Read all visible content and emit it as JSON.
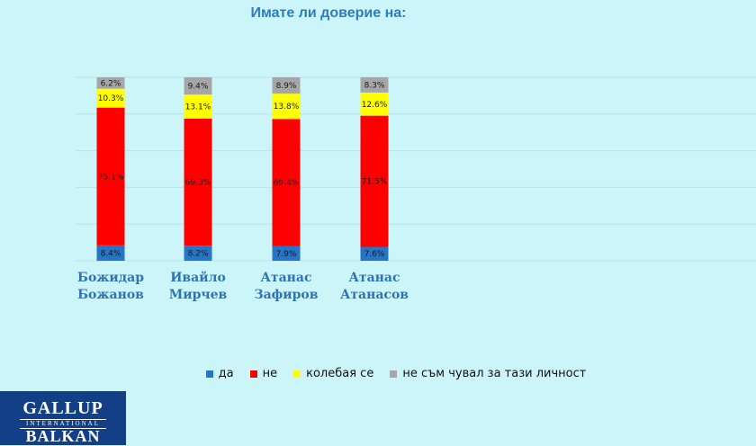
{
  "chart_data": {
    "type": "bar",
    "stacked": true,
    "title": "Имате  ли доверие на:",
    "categories": [
      "Божидар Божанов",
      "Ивайло Мирчев",
      "Атанас Зафиров",
      "Атанас Атанасов"
    ],
    "category_lines": [
      [
        "Божидар",
        "Божанов"
      ],
      [
        "Ивайло",
        "Мирчев"
      ],
      [
        "Атанас",
        "Зафиров"
      ],
      [
        "Атанас",
        "Атанасов"
      ]
    ],
    "series": [
      {
        "name": "да",
        "color": "#2476c9",
        "values": [
          8.4,
          8.2,
          7.9,
          7.6
        ],
        "labels": [
          "8.4%",
          "8.2%",
          "7.9%",
          "7.6%"
        ]
      },
      {
        "name": "не",
        "color": "#ff0000",
        "values": [
          75.1,
          69.3,
          69.4,
          71.5
        ],
        "labels": [
          "75.1%",
          "69.3%",
          "69.4%",
          "71.5%"
        ]
      },
      {
        "name": "колебая се",
        "color": "#ffff00",
        "values": [
          10.3,
          13.1,
          13.8,
          12.6
        ],
        "labels": [
          "10.3%",
          "13.1%",
          "13.8%",
          "12.6%"
        ]
      },
      {
        "name": "не съм чувал за тази личност",
        "color": "#a6a6a6",
        "values": [
          6.2,
          9.4,
          8.9,
          8.3
        ],
        "labels": [
          "6.2%",
          "9.4%",
          "8.9%",
          "8.3%"
        ]
      }
    ],
    "ylim": [
      0,
      100
    ],
    "grid": true,
    "legend_position": "bottom"
  },
  "logo": {
    "top": "GALLUP",
    "middle": "INTERNATIONAL",
    "bottom": "BALKAN"
  }
}
